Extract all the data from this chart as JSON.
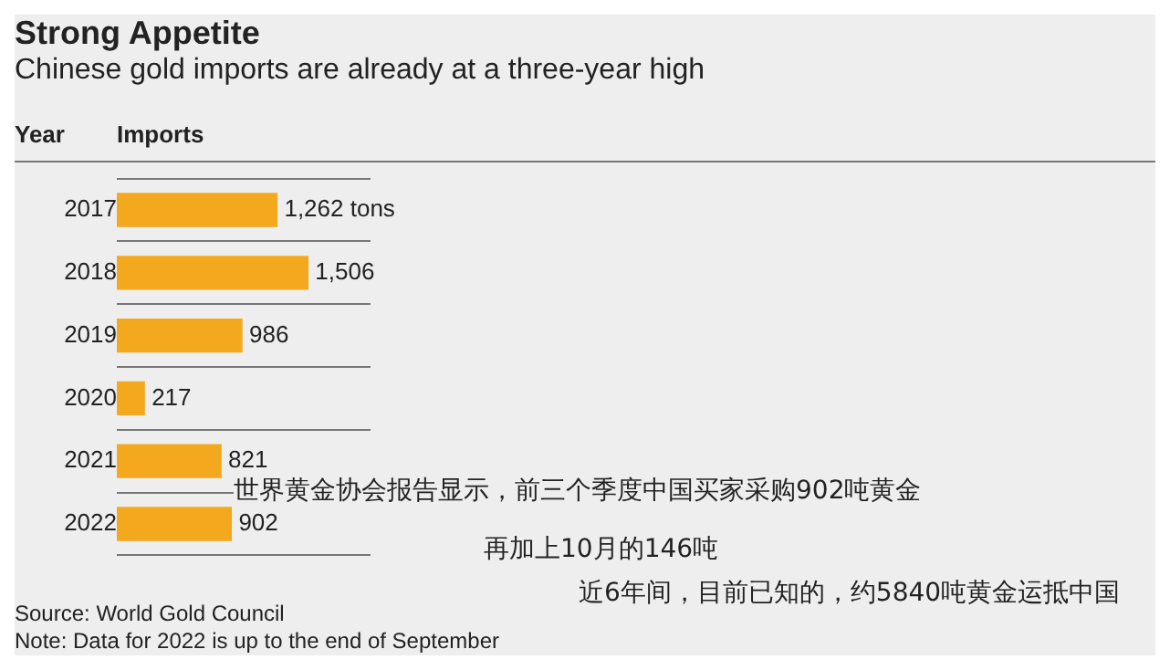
{
  "chart_data": {
    "type": "bar",
    "orientation": "horizontal",
    "title": "Strong Appetite",
    "subtitle": "Chinese gold imports are already at a three-year high",
    "ylabel": "Year",
    "xlabel": "Imports",
    "categories": [
      "2017",
      "2018",
      "2019",
      "2020",
      "2021",
      "2022"
    ],
    "values": [
      1262,
      1506,
      986,
      217,
      821,
      902
    ],
    "value_labels": [
      "1,262 tons",
      "1,506",
      "986",
      "217",
      "821",
      "902"
    ],
    "color": "#f4a81d",
    "grid": "y",
    "legend": false,
    "tick_labels": "y",
    "annotations": [
      "世界黄金协会报告显示，前三个季度中国买家采购902吨黄金",
      "再加上10月的146吨",
      "近6年间，目前已知的，约5840吨黄金运抵中国",
      "Source: World Gold Council",
      "Note: Data for 2022 is up to the end of September"
    ]
  }
}
